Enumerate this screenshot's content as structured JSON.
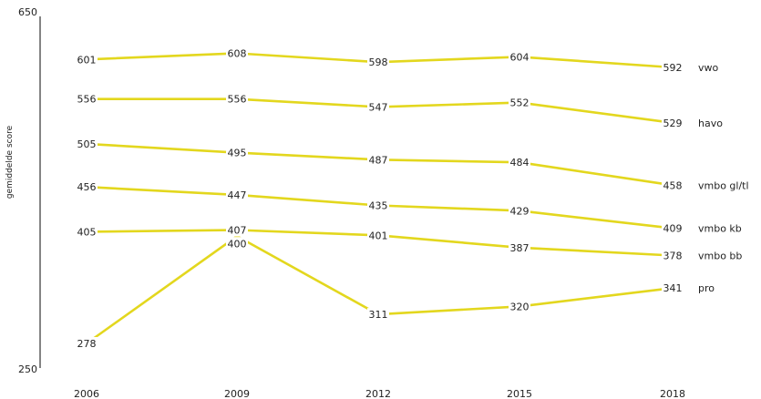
{
  "chart_data": {
    "type": "line",
    "title": "",
    "xlabel": "",
    "ylabel": "gemiddelde score",
    "x": [
      "2006",
      "2009",
      "2012",
      "2015",
      "2018"
    ],
    "ylim": [
      250,
      650
    ],
    "yticks": [
      "650",
      "250"
    ],
    "grid": false,
    "line_color": "#e3d71e",
    "series": [
      {
        "name": "vwo",
        "values": [
          601,
          608,
          598,
          604,
          592
        ]
      },
      {
        "name": "havo",
        "values": [
          556,
          556,
          547,
          552,
          529
        ]
      },
      {
        "name": "vmbo gl/tl",
        "values": [
          505,
          495,
          487,
          484,
          458
        ]
      },
      {
        "name": "vmbo kb",
        "values": [
          456,
          447,
          435,
          429,
          409
        ]
      },
      {
        "name": "vmbo bb",
        "values": [
          405,
          407,
          401,
          387,
          378
        ]
      },
      {
        "name": "pro",
        "values": [
          278,
          400,
          311,
          320,
          341
        ]
      }
    ]
  }
}
